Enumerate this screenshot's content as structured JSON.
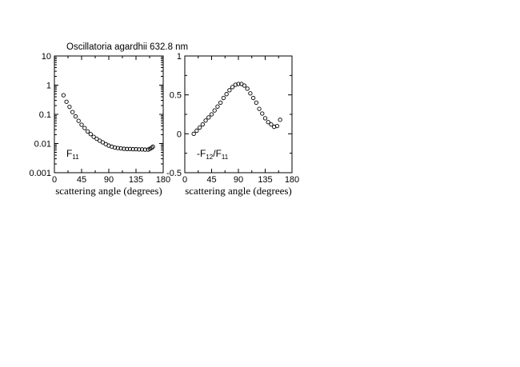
{
  "figure": {
    "title": "Oscillatoria agardhii  632.8 nm"
  },
  "chart_data": [
    {
      "type": "scatter",
      "panel_label": "F",
      "panel_label_sub": "11",
      "xlabel": "scattering angle (degrees)",
      "ylabel": "",
      "xlim": [
        0,
        180
      ],
      "ylim": [
        0.001,
        10
      ],
      "yscale": "log",
      "xticks": [
        "0",
        "45",
        "90",
        "135",
        "180"
      ],
      "yticks": [
        "0.001",
        "0.01",
        "0.1",
        "1",
        "10"
      ],
      "grid": false,
      "marker": "open-circle",
      "series": [
        {
          "x": [
            15,
            20,
            25,
            30,
            35,
            40,
            45,
            50,
            55,
            60,
            65,
            70,
            75,
            80,
            85,
            90,
            95,
            100,
            105,
            110,
            115,
            120,
            125,
            130,
            135,
            140,
            145,
            150,
            155,
            158,
            161,
            163
          ],
          "y": [
            0.45,
            0.27,
            0.18,
            0.12,
            0.085,
            0.06,
            0.044,
            0.034,
            0.026,
            0.021,
            0.017,
            0.0145,
            0.0125,
            0.011,
            0.0095,
            0.0085,
            0.0078,
            0.0073,
            0.007,
            0.0068,
            0.0066,
            0.0065,
            0.0065,
            0.0064,
            0.0064,
            0.0063,
            0.0063,
            0.0062,
            0.0062,
            0.0066,
            0.0071,
            0.0078
          ]
        }
      ]
    },
    {
      "type": "scatter",
      "panel_label": "-F",
      "panel_label_sub": "12",
      "panel_label_mid": "/F",
      "panel_label_sub2": "11",
      "xlabel": "scattering angle (degrees)",
      "ylabel": "",
      "xlim": [
        0,
        180
      ],
      "ylim": [
        -0.5,
        1
      ],
      "yscale": "linear",
      "xticks": [
        "0",
        "45",
        "90",
        "135",
        "180"
      ],
      "yticks": [
        "-0.5",
        "0",
        "0.5",
        "1"
      ],
      "grid": false,
      "marker": "open-circle",
      "series": [
        {
          "x": [
            15,
            20,
            25,
            30,
            35,
            40,
            45,
            50,
            55,
            60,
            65,
            70,
            75,
            80,
            85,
            90,
            95,
            100,
            105,
            110,
            115,
            120,
            125,
            130,
            135,
            140,
            145,
            150,
            155,
            160
          ],
          "y": [
            0.0,
            0.04,
            0.08,
            0.12,
            0.17,
            0.21,
            0.25,
            0.3,
            0.35,
            0.4,
            0.46,
            0.51,
            0.56,
            0.6,
            0.63,
            0.64,
            0.64,
            0.62,
            0.58,
            0.52,
            0.46,
            0.4,
            0.32,
            0.26,
            0.2,
            0.15,
            0.12,
            0.09,
            0.1,
            0.18
          ]
        }
      ]
    }
  ]
}
